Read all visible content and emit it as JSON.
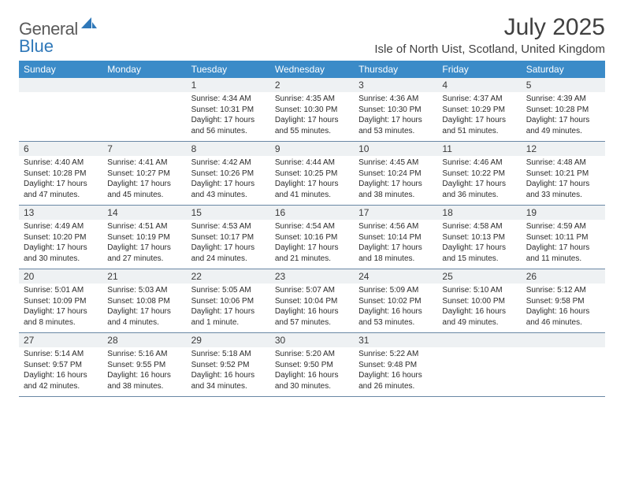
{
  "logo": {
    "text1": "General",
    "text2": "Blue"
  },
  "title": "July 2025",
  "location": "Isle of North Uist, Scotland, United Kingdom",
  "colors": {
    "header_bg": "#3b8bc8",
    "header_text": "#ffffff",
    "daynum_bg": "#eef1f3",
    "divider": "#6a88a5",
    "logo_gray": "#5a5a5a",
    "logo_blue": "#2f78b9",
    "title_color": "#404040"
  },
  "weekdays": [
    "Sunday",
    "Monday",
    "Tuesday",
    "Wednesday",
    "Thursday",
    "Friday",
    "Saturday"
  ],
  "weeks": [
    [
      {
        "day": "",
        "lines": []
      },
      {
        "day": "",
        "lines": []
      },
      {
        "day": "1",
        "lines": [
          "Sunrise: 4:34 AM",
          "Sunset: 10:31 PM",
          "Daylight: 17 hours and 56 minutes."
        ]
      },
      {
        "day": "2",
        "lines": [
          "Sunrise: 4:35 AM",
          "Sunset: 10:30 PM",
          "Daylight: 17 hours and 55 minutes."
        ]
      },
      {
        "day": "3",
        "lines": [
          "Sunrise: 4:36 AM",
          "Sunset: 10:30 PM",
          "Daylight: 17 hours and 53 minutes."
        ]
      },
      {
        "day": "4",
        "lines": [
          "Sunrise: 4:37 AM",
          "Sunset: 10:29 PM",
          "Daylight: 17 hours and 51 minutes."
        ]
      },
      {
        "day": "5",
        "lines": [
          "Sunrise: 4:39 AM",
          "Sunset: 10:28 PM",
          "Daylight: 17 hours and 49 minutes."
        ]
      }
    ],
    [
      {
        "day": "6",
        "lines": [
          "Sunrise: 4:40 AM",
          "Sunset: 10:28 PM",
          "Daylight: 17 hours and 47 minutes."
        ]
      },
      {
        "day": "7",
        "lines": [
          "Sunrise: 4:41 AM",
          "Sunset: 10:27 PM",
          "Daylight: 17 hours and 45 minutes."
        ]
      },
      {
        "day": "8",
        "lines": [
          "Sunrise: 4:42 AM",
          "Sunset: 10:26 PM",
          "Daylight: 17 hours and 43 minutes."
        ]
      },
      {
        "day": "9",
        "lines": [
          "Sunrise: 4:44 AM",
          "Sunset: 10:25 PM",
          "Daylight: 17 hours and 41 minutes."
        ]
      },
      {
        "day": "10",
        "lines": [
          "Sunrise: 4:45 AM",
          "Sunset: 10:24 PM",
          "Daylight: 17 hours and 38 minutes."
        ]
      },
      {
        "day": "11",
        "lines": [
          "Sunrise: 4:46 AM",
          "Sunset: 10:22 PM",
          "Daylight: 17 hours and 36 minutes."
        ]
      },
      {
        "day": "12",
        "lines": [
          "Sunrise: 4:48 AM",
          "Sunset: 10:21 PM",
          "Daylight: 17 hours and 33 minutes."
        ]
      }
    ],
    [
      {
        "day": "13",
        "lines": [
          "Sunrise: 4:49 AM",
          "Sunset: 10:20 PM",
          "Daylight: 17 hours and 30 minutes."
        ]
      },
      {
        "day": "14",
        "lines": [
          "Sunrise: 4:51 AM",
          "Sunset: 10:19 PM",
          "Daylight: 17 hours and 27 minutes."
        ]
      },
      {
        "day": "15",
        "lines": [
          "Sunrise: 4:53 AM",
          "Sunset: 10:17 PM",
          "Daylight: 17 hours and 24 minutes."
        ]
      },
      {
        "day": "16",
        "lines": [
          "Sunrise: 4:54 AM",
          "Sunset: 10:16 PM",
          "Daylight: 17 hours and 21 minutes."
        ]
      },
      {
        "day": "17",
        "lines": [
          "Sunrise: 4:56 AM",
          "Sunset: 10:14 PM",
          "Daylight: 17 hours and 18 minutes."
        ]
      },
      {
        "day": "18",
        "lines": [
          "Sunrise: 4:58 AM",
          "Sunset: 10:13 PM",
          "Daylight: 17 hours and 15 minutes."
        ]
      },
      {
        "day": "19",
        "lines": [
          "Sunrise: 4:59 AM",
          "Sunset: 10:11 PM",
          "Daylight: 17 hours and 11 minutes."
        ]
      }
    ],
    [
      {
        "day": "20",
        "lines": [
          "Sunrise: 5:01 AM",
          "Sunset: 10:09 PM",
          "Daylight: 17 hours and 8 minutes."
        ]
      },
      {
        "day": "21",
        "lines": [
          "Sunrise: 5:03 AM",
          "Sunset: 10:08 PM",
          "Daylight: 17 hours and 4 minutes."
        ]
      },
      {
        "day": "22",
        "lines": [
          "Sunrise: 5:05 AM",
          "Sunset: 10:06 PM",
          "Daylight: 17 hours and 1 minute."
        ]
      },
      {
        "day": "23",
        "lines": [
          "Sunrise: 5:07 AM",
          "Sunset: 10:04 PM",
          "Daylight: 16 hours and 57 minutes."
        ]
      },
      {
        "day": "24",
        "lines": [
          "Sunrise: 5:09 AM",
          "Sunset: 10:02 PM",
          "Daylight: 16 hours and 53 minutes."
        ]
      },
      {
        "day": "25",
        "lines": [
          "Sunrise: 5:10 AM",
          "Sunset: 10:00 PM",
          "Daylight: 16 hours and 49 minutes."
        ]
      },
      {
        "day": "26",
        "lines": [
          "Sunrise: 5:12 AM",
          "Sunset: 9:58 PM",
          "Daylight: 16 hours and 46 minutes."
        ]
      }
    ],
    [
      {
        "day": "27",
        "lines": [
          "Sunrise: 5:14 AM",
          "Sunset: 9:57 PM",
          "Daylight: 16 hours and 42 minutes."
        ]
      },
      {
        "day": "28",
        "lines": [
          "Sunrise: 5:16 AM",
          "Sunset: 9:55 PM",
          "Daylight: 16 hours and 38 minutes."
        ]
      },
      {
        "day": "29",
        "lines": [
          "Sunrise: 5:18 AM",
          "Sunset: 9:52 PM",
          "Daylight: 16 hours and 34 minutes."
        ]
      },
      {
        "day": "30",
        "lines": [
          "Sunrise: 5:20 AM",
          "Sunset: 9:50 PM",
          "Daylight: 16 hours and 30 minutes."
        ]
      },
      {
        "day": "31",
        "lines": [
          "Sunrise: 5:22 AM",
          "Sunset: 9:48 PM",
          "Daylight: 16 hours and 26 minutes."
        ]
      },
      {
        "day": "",
        "lines": []
      },
      {
        "day": "",
        "lines": []
      }
    ]
  ]
}
